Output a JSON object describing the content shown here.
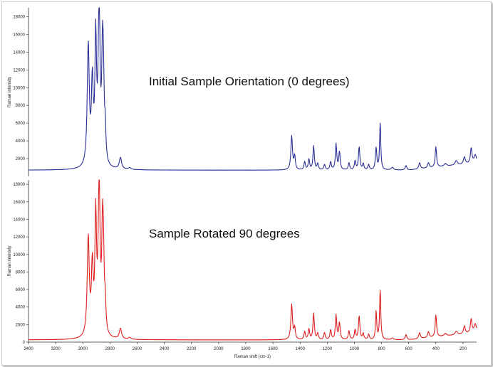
{
  "chart_data": [
    {
      "type": "line",
      "annotation": "Initial Sample Orientation (0 degrees)",
      "ylabel": "Raman intensity",
      "xlabel": "",
      "color": "#2a2f96",
      "xlim": [
        3400,
        100
      ],
      "ylim": [
        0,
        19000
      ],
      "yticks": [
        "2000",
        "4000",
        "6000",
        "8000",
        "10000",
        "12000",
        "14000",
        "16000",
        "18000"
      ],
      "xticks": [],
      "grid": false,
      "baseline": 700,
      "peaks": [
        {
          "x": 2960,
          "y": 13600,
          "w": 9
        },
        {
          "x": 2930,
          "y": 9000,
          "w": 8
        },
        {
          "x": 2905,
          "y": 13800,
          "w": 7
        },
        {
          "x": 2880,
          "y": 18600,
          "w": 8
        },
        {
          "x": 2855,
          "y": 11500,
          "w": 7
        },
        {
          "x": 2848,
          "y": 6500,
          "w": 6
        },
        {
          "x": 2835,
          "y": 3500,
          "w": 6
        },
        {
          "x": 2723,
          "y": 1300,
          "w": 10
        },
        {
          "x": 2655,
          "y": 200,
          "w": 12
        },
        {
          "x": 1462,
          "y": 3800,
          "w": 7
        },
        {
          "x": 1440,
          "y": 1500,
          "w": 6
        },
        {
          "x": 1366,
          "y": 900,
          "w": 6
        },
        {
          "x": 1335,
          "y": 1200,
          "w": 6
        },
        {
          "x": 1300,
          "y": 2700,
          "w": 6
        },
        {
          "x": 1270,
          "y": 700,
          "w": 6
        },
        {
          "x": 1220,
          "y": 600,
          "w": 6
        },
        {
          "x": 1175,
          "y": 900,
          "w": 6
        },
        {
          "x": 1135,
          "y": 2900,
          "w": 6
        },
        {
          "x": 1110,
          "y": 2000,
          "w": 6
        },
        {
          "x": 1040,
          "y": 800,
          "w": 6
        },
        {
          "x": 995,
          "y": 1000,
          "w": 6
        },
        {
          "x": 965,
          "y": 2600,
          "w": 6
        },
        {
          "x": 935,
          "y": 700,
          "w": 6
        },
        {
          "x": 895,
          "y": 600,
          "w": 6
        },
        {
          "x": 840,
          "y": 2500,
          "w": 6
        },
        {
          "x": 810,
          "y": 5400,
          "w": 5
        },
        {
          "x": 720,
          "y": 300,
          "w": 10
        },
        {
          "x": 620,
          "y": 500,
          "w": 7
        },
        {
          "x": 520,
          "y": 700,
          "w": 7
        },
        {
          "x": 455,
          "y": 600,
          "w": 7
        },
        {
          "x": 400,
          "y": 2300,
          "w": 6
        },
        {
          "x": 330,
          "y": 300,
          "w": 10
        },
        {
          "x": 250,
          "y": 500,
          "w": 10
        },
        {
          "x": 190,
          "y": 800,
          "w": 8
        },
        {
          "x": 140,
          "y": 1700,
          "w": 7
        },
        {
          "x": 110,
          "y": 900,
          "w": 10
        }
      ]
    },
    {
      "type": "line",
      "annotation": "Sample Rotated 90 degrees",
      "ylabel": "Raman intensity",
      "xlabel": "Raman shift (cm-1)",
      "color": "#dd1f1f",
      "xlim": [
        3400,
        100
      ],
      "ylim": [
        0,
        18500
      ],
      "yticks": [
        "0",
        "2000",
        "4000",
        "6000",
        "8000",
        "10000",
        "12000",
        "14000",
        "16000",
        "18000"
      ],
      "xticks": [
        "3400",
        "3200",
        "3000",
        "2800",
        "2600",
        "2400",
        "2200",
        "2000",
        "1800",
        "1600",
        "1400",
        "1200",
        "1000",
        "800",
        "600",
        "400",
        "200"
      ],
      "grid": false,
      "baseline": 250,
      "peaks": [
        {
          "x": 2960,
          "y": 11200,
          "w": 9
        },
        {
          "x": 2930,
          "y": 7600,
          "w": 8
        },
        {
          "x": 2905,
          "y": 13200,
          "w": 7
        },
        {
          "x": 2880,
          "y": 17500,
          "w": 8
        },
        {
          "x": 2855,
          "y": 11000,
          "w": 7
        },
        {
          "x": 2848,
          "y": 6200,
          "w": 6
        },
        {
          "x": 2835,
          "y": 3200,
          "w": 6
        },
        {
          "x": 2723,
          "y": 1200,
          "w": 10
        },
        {
          "x": 2655,
          "y": 200,
          "w": 12
        },
        {
          "x": 1462,
          "y": 4000,
          "w": 7
        },
        {
          "x": 1440,
          "y": 1300,
          "w": 6
        },
        {
          "x": 1366,
          "y": 900,
          "w": 6
        },
        {
          "x": 1335,
          "y": 1200,
          "w": 6
        },
        {
          "x": 1300,
          "y": 3000,
          "w": 6
        },
        {
          "x": 1270,
          "y": 700,
          "w": 6
        },
        {
          "x": 1220,
          "y": 800,
          "w": 6
        },
        {
          "x": 1175,
          "y": 1100,
          "w": 6
        },
        {
          "x": 1135,
          "y": 2800,
          "w": 6
        },
        {
          "x": 1110,
          "y": 1900,
          "w": 6
        },
        {
          "x": 1040,
          "y": 1000,
          "w": 6
        },
        {
          "x": 995,
          "y": 1100,
          "w": 6
        },
        {
          "x": 965,
          "y": 2700,
          "w": 6
        },
        {
          "x": 935,
          "y": 700,
          "w": 6
        },
        {
          "x": 895,
          "y": 600,
          "w": 6
        },
        {
          "x": 840,
          "y": 3300,
          "w": 5
        },
        {
          "x": 810,
          "y": 5800,
          "w": 5
        },
        {
          "x": 720,
          "y": 200,
          "w": 10
        },
        {
          "x": 620,
          "y": 600,
          "w": 7
        },
        {
          "x": 520,
          "y": 700,
          "w": 7
        },
        {
          "x": 455,
          "y": 700,
          "w": 7
        },
        {
          "x": 400,
          "y": 2500,
          "w": 6
        },
        {
          "x": 330,
          "y": 300,
          "w": 10
        },
        {
          "x": 250,
          "y": 400,
          "w": 10
        },
        {
          "x": 190,
          "y": 900,
          "w": 8
        },
        {
          "x": 140,
          "y": 1600,
          "w": 7
        },
        {
          "x": 110,
          "y": 1000,
          "w": 10
        }
      ]
    }
  ]
}
